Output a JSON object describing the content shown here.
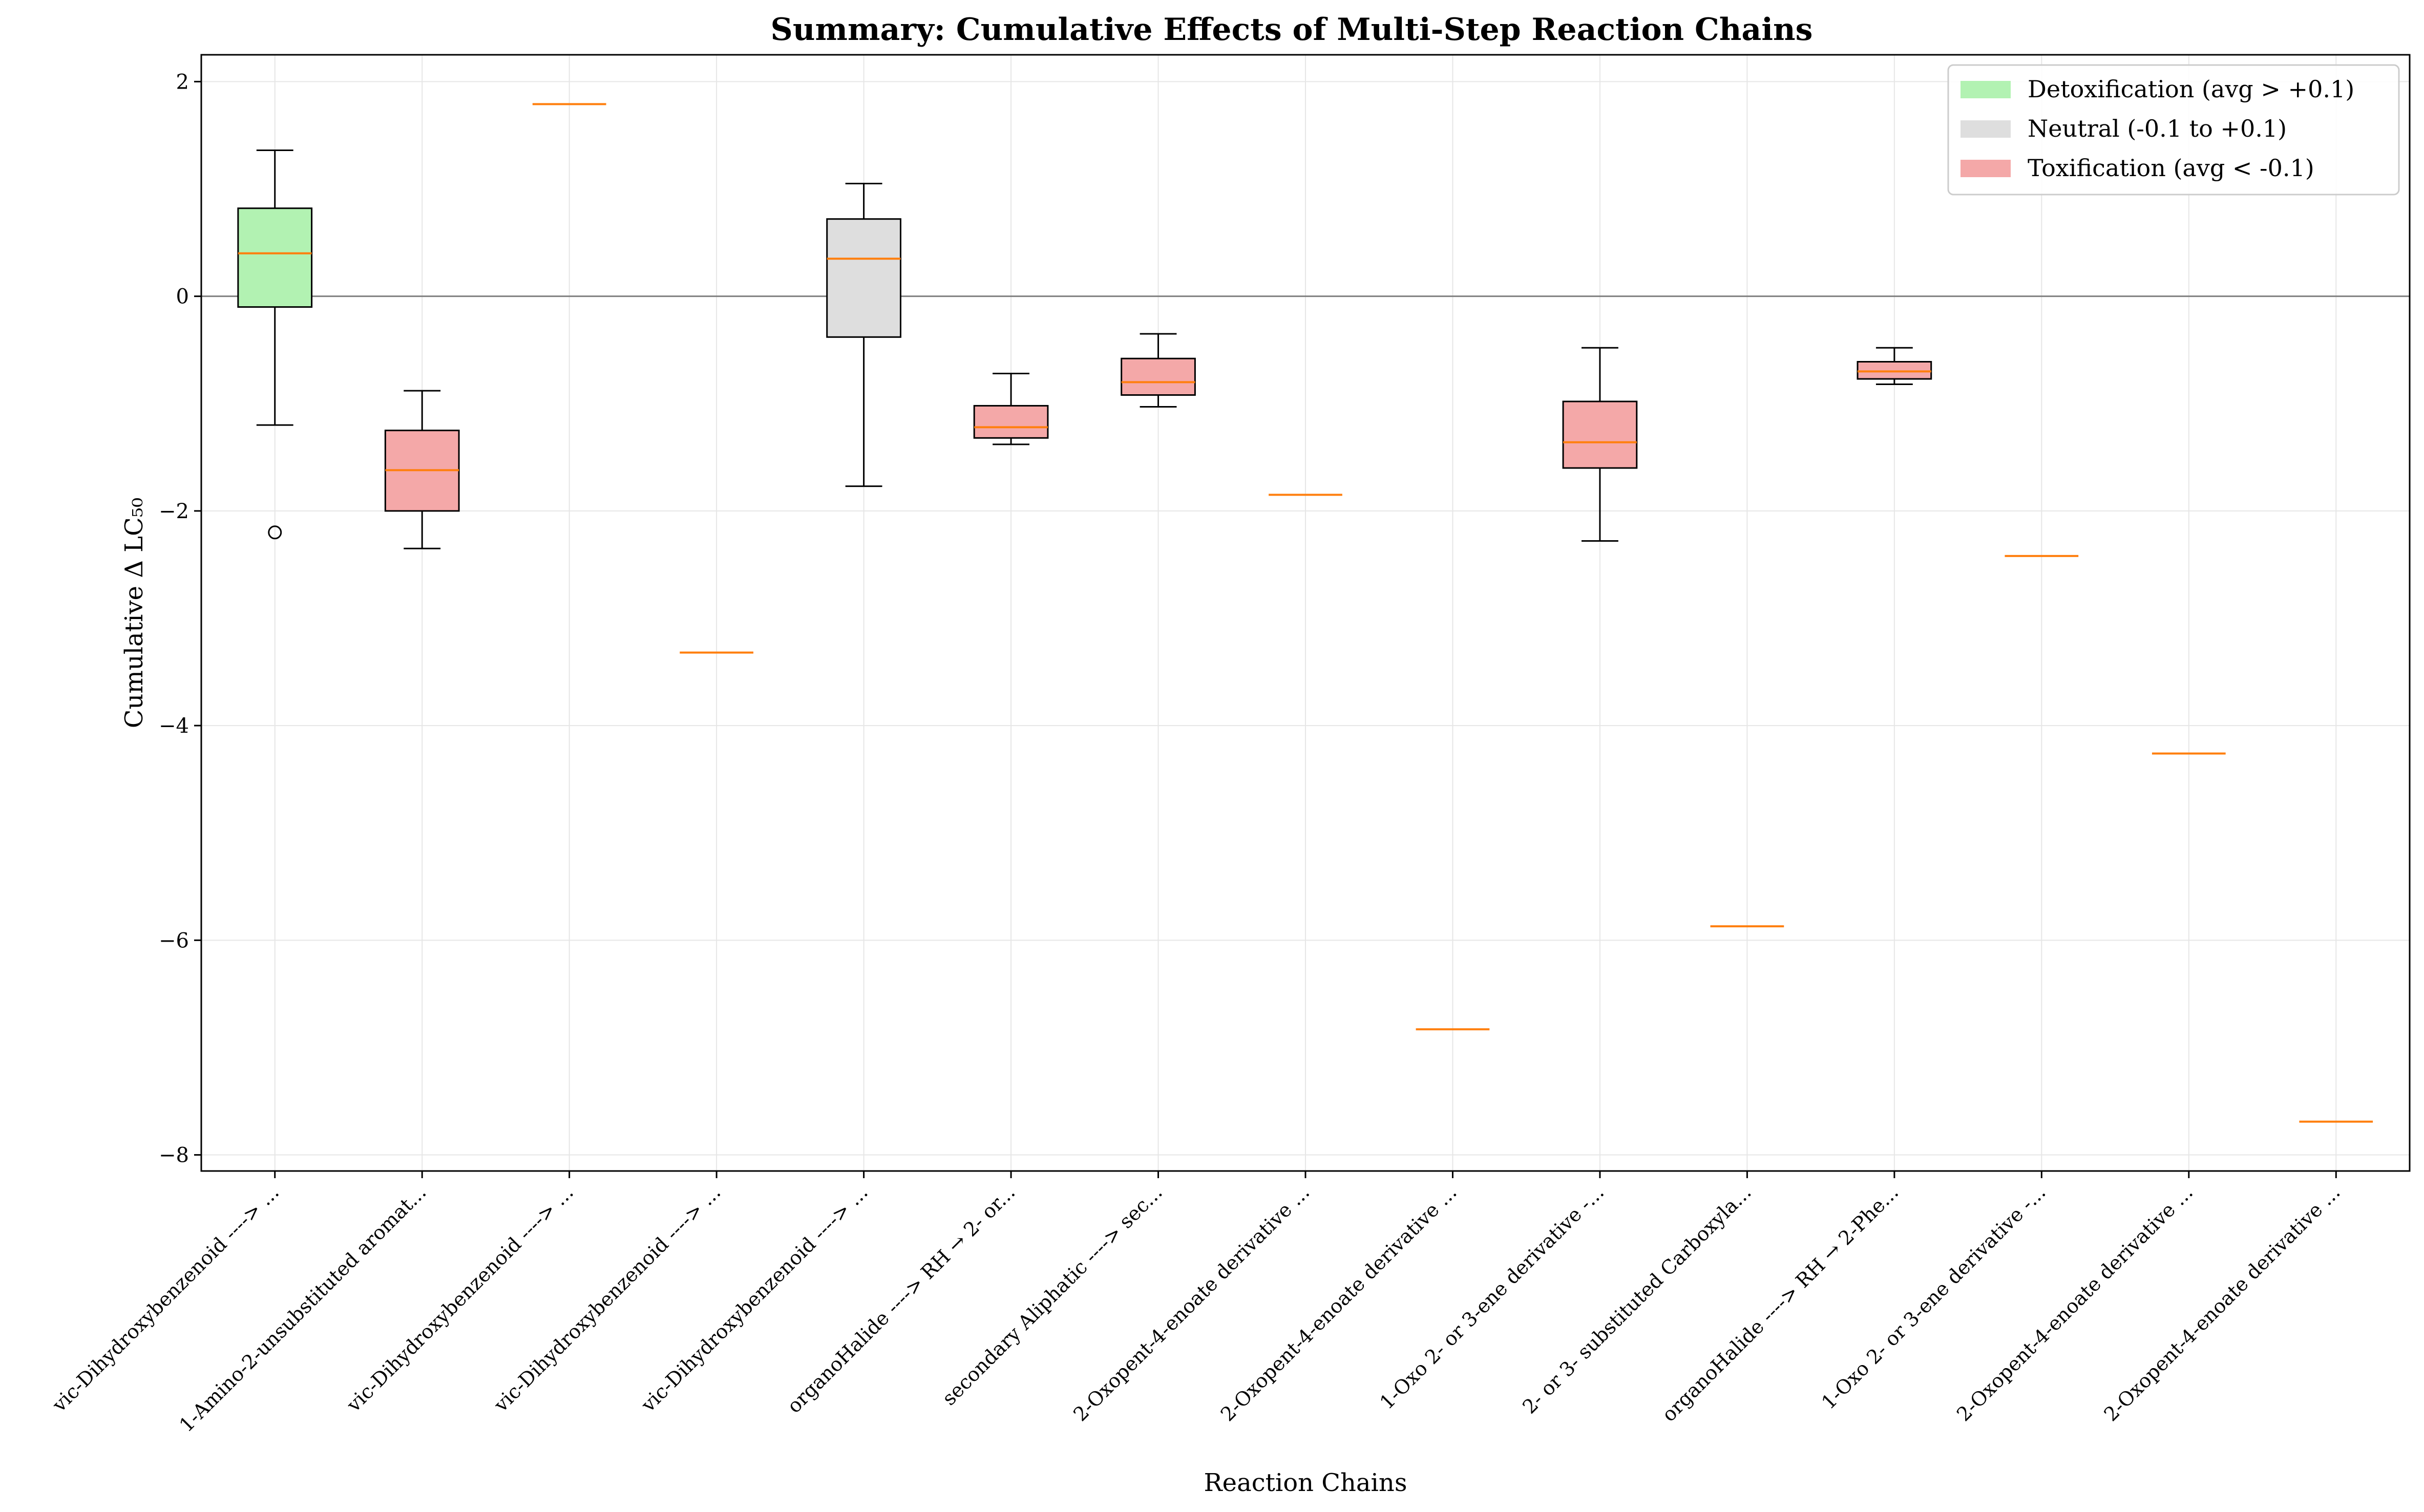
{
  "chart_data": {
    "type": "box",
    "title": "Summary: Cumulative Effects of Multi-Step Reaction Chains",
    "xlabel": "Reaction Chains",
    "ylabel": "Cumulative Δ LC₅₀",
    "ylim": [
      -8.15,
      2.25
    ],
    "yticks": [
      2,
      0,
      -2,
      -4,
      -6,
      -8
    ],
    "ytick_labels": [
      "2",
      "0",
      "−2",
      "−4",
      "−6",
      "−8"
    ],
    "grid": true,
    "zero_line": true,
    "legend_position": "top-right",
    "legend": [
      {
        "label": "Detoxification (avg > +0.1)",
        "color": "#b2f2b2"
      },
      {
        "label": "Neutral (-0.1 to +0.1)",
        "color": "#dedede"
      },
      {
        "label": "Toxification (avg < -0.1)",
        "color": "#f4a8a8"
      }
    ],
    "colors": {
      "detox": "#b2f2b2",
      "neutral": "#dedede",
      "tox": "#f4a8a8",
      "median": "#ff7f0e"
    },
    "categories": [
      "vic-Dihydroxybenzenoid ----> ...",
      "1-Amino-2-unsubstituted aromat...",
      "vic-Dihydroxybenzenoid ----> ...",
      "vic-Dihydroxybenzenoid ----> ...",
      "vic-Dihydroxybenzenoid ----> ...",
      "organoHalide ----> RH → 2- or...",
      "secondary Aliphatic ----> sec...",
      "2-Oxopent-4-enoate derivative ...",
      "2-Oxopent-4-enoate derivative ...",
      "1-Oxo 2- or 3-ene derivative -...",
      "2- or 3- substituted Carboxyla...",
      "organoHalide ----> RH → 2-Phe...",
      "1-Oxo 2- or 3-ene derivative -...",
      "2-Oxopent-4-enoate derivative ...",
      "2-Oxopent-4-enoate derivative ..."
    ],
    "boxes": [
      {
        "whislo": -1.2,
        "q1": -0.1,
        "med": 0.4,
        "q3": 0.82,
        "whishi": 1.36,
        "fliers": [
          -2.2
        ],
        "group": "detox"
      },
      {
        "whislo": -2.35,
        "q1": -2.0,
        "med": -1.62,
        "q3": -1.25,
        "whishi": -0.88,
        "fliers": [],
        "group": "tox"
      },
      {
        "whislo": 1.79,
        "q1": 1.79,
        "med": 1.79,
        "q3": 1.79,
        "whishi": 1.79,
        "fliers": [],
        "group": "detox"
      },
      {
        "whislo": -3.32,
        "q1": -3.32,
        "med": -3.32,
        "q3": -3.32,
        "whishi": -3.32,
        "fliers": [],
        "group": "tox"
      },
      {
        "whislo": -1.77,
        "q1": -0.38,
        "med": 0.35,
        "q3": 0.72,
        "whishi": 1.05,
        "fliers": [],
        "group": "neutral"
      },
      {
        "whislo": -1.38,
        "q1": -1.32,
        "med": -1.22,
        "q3": -1.02,
        "whishi": -0.72,
        "fliers": [],
        "group": "tox"
      },
      {
        "whislo": -1.03,
        "q1": -0.92,
        "med": -0.8,
        "q3": -0.58,
        "whishi": -0.35,
        "fliers": [],
        "group": "tox"
      },
      {
        "whislo": -1.85,
        "q1": -1.85,
        "med": -1.85,
        "q3": -1.85,
        "whishi": -1.85,
        "fliers": [],
        "group": "tox"
      },
      {
        "whislo": -6.83,
        "q1": -6.83,
        "med": -6.83,
        "q3": -6.83,
        "whishi": -6.83,
        "fliers": [],
        "group": "tox"
      },
      {
        "whislo": -2.28,
        "q1": -1.6,
        "med": -1.36,
        "q3": -0.98,
        "whishi": -0.48,
        "fliers": [],
        "group": "tox"
      },
      {
        "whislo": -5.87,
        "q1": -5.87,
        "med": -5.87,
        "q3": -5.87,
        "whishi": -5.87,
        "fliers": [],
        "group": "tox"
      },
      {
        "whislo": -0.82,
        "q1": -0.77,
        "med": -0.7,
        "q3": -0.61,
        "whishi": -0.48,
        "fliers": [],
        "group": "tox"
      },
      {
        "whislo": -2.42,
        "q1": -2.42,
        "med": -2.42,
        "q3": -2.42,
        "whishi": -2.42,
        "fliers": [],
        "group": "tox"
      },
      {
        "whislo": -4.26,
        "q1": -4.26,
        "med": -4.26,
        "q3": -4.26,
        "whishi": -4.26,
        "fliers": [],
        "group": "tox"
      },
      {
        "whislo": -7.69,
        "q1": -7.69,
        "med": -7.69,
        "q3": -7.69,
        "whishi": -7.69,
        "fliers": [],
        "group": "tox"
      }
    ]
  }
}
